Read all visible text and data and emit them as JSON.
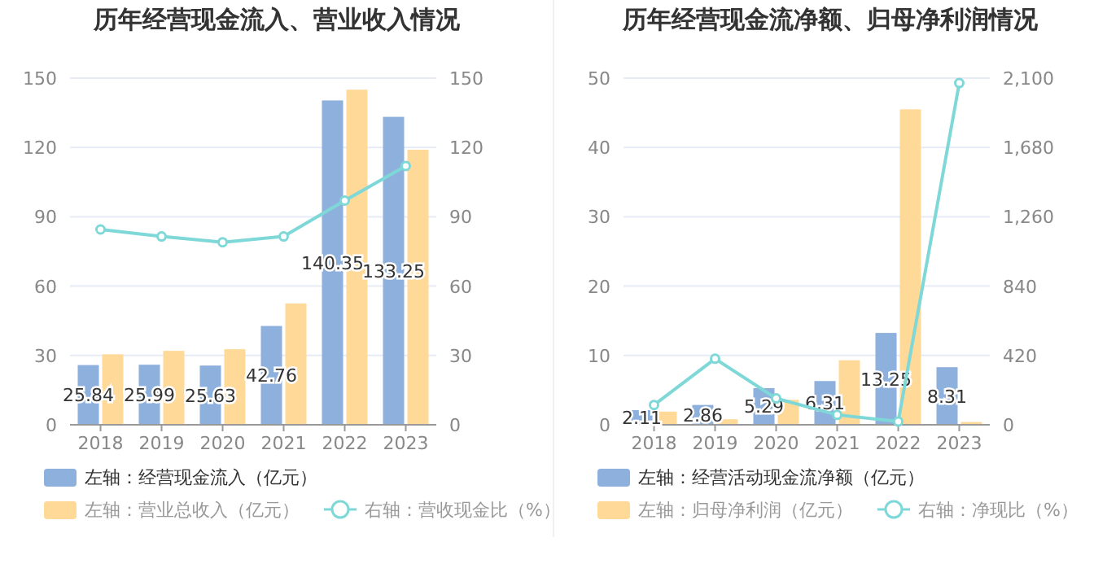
{
  "chart_data": [
    {
      "type": "bar",
      "title": "历年经营现金流入、营业收入情况",
      "categories": [
        "2018",
        "2019",
        "2020",
        "2021",
        "2022",
        "2023"
      ],
      "ylim": [
        0,
        150
      ],
      "yticks": [
        0,
        30,
        60,
        90,
        120,
        150
      ],
      "y2lim": [
        0,
        150
      ],
      "y2ticks": [
        0,
        30,
        60,
        90,
        120,
        150
      ],
      "grid": "y",
      "legend": "bottom",
      "series": [
        {
          "name": "左轴：经营现金流入（亿元）",
          "color": "#8eb0dc",
          "values": [
            25.84,
            25.99,
            25.63,
            42.76,
            140.35,
            133.25
          ],
          "value_labels": [
            "25.84",
            "25.99",
            "25.63",
            "42.76",
            "140.35",
            "133.25"
          ]
        },
        {
          "name": "左轴：营业总收入（亿元）",
          "color": "#ffd998",
          "values": [
            30.5,
            32,
            32.7,
            52.5,
            145,
            119
          ]
        },
        {
          "name": "右轴：营收现金比（%）",
          "type": "line",
          "axis": "y2",
          "marker": "circle",
          "color": "#7fd8d8",
          "values": [
            84.5,
            81.5,
            79,
            81.5,
            97,
            112
          ]
        }
      ]
    },
    {
      "type": "bar",
      "title": "历年经营现金流净额、归母净利润情况",
      "categories": [
        "2018",
        "2019",
        "2020",
        "2021",
        "2022",
        "2023"
      ],
      "ylim": [
        0,
        50
      ],
      "yticks": [
        0,
        10,
        20,
        30,
        40,
        50
      ],
      "y2lim": [
        0,
        2100
      ],
      "y2ticks": [
        {
          "value": 0,
          "label": "0"
        },
        {
          "value": 420,
          "label": "420"
        },
        {
          "value": 840,
          "label": "840"
        },
        {
          "value": 1260,
          "label": "1,260"
        },
        {
          "value": 1680,
          "label": "1,680"
        },
        {
          "value": 2100,
          "label": "2,100"
        }
      ],
      "grid": "y",
      "legend": "bottom",
      "series": [
        {
          "name": "左轴：经营活动现金流净额（亿元）",
          "color": "#8eb0dc",
          "values": [
            2.11,
            2.86,
            5.29,
            6.31,
            13.25,
            8.31
          ],
          "value_labels": [
            "2.11",
            "2.86",
            "5.29",
            "6.31",
            "13.25",
            "8.31"
          ]
        },
        {
          "name": "左轴：归母净利润（亿元）",
          "color": "#ffd998",
          "values": [
            1.9,
            0.8,
            3.6,
            9.3,
            45.5,
            0.4
          ]
        },
        {
          "name": "右轴：净现比（%）",
          "type": "line",
          "axis": "y2",
          "marker": "circle",
          "color": "#7fd8d8",
          "values": [
            120,
            400,
            160,
            60,
            20,
            2070
          ]
        }
      ]
    }
  ]
}
